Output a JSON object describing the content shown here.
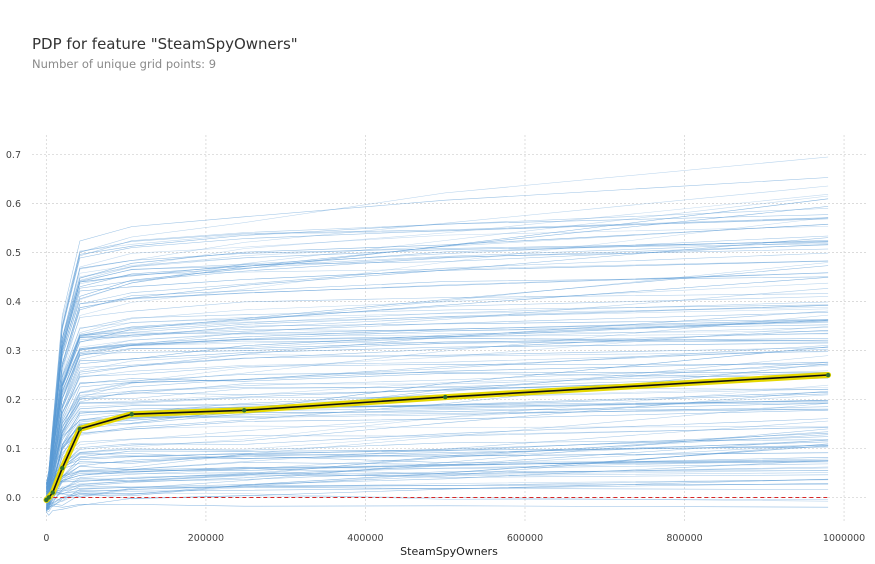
{
  "chart_data": {
    "type": "line",
    "title": "PDP for feature \"SteamSpyOwners\"",
    "subtitle": "Number of unique grid points: 9",
    "xlabel": "SteamSpyOwners",
    "ylabel": "",
    "xlim": [
      -18000,
      1030000
    ],
    "ylim": [
      -0.05,
      0.74
    ],
    "x_ticks": [
      0,
      200000,
      400000,
      600000,
      800000,
      1000000
    ],
    "y_ticks": [
      0.0,
      0.1,
      0.2,
      0.3,
      0.4,
      0.5,
      0.6,
      0.7
    ],
    "x_tick_labels": [
      "0",
      "200000",
      "400000",
      "600000",
      "800000",
      "1000000"
    ],
    "y_tick_labels": [
      "0.0",
      "0.1",
      "0.2",
      "0.3",
      "0.4",
      "0.5",
      "0.6",
      "0.7"
    ],
    "grid": true,
    "grid_points": [
      0,
      3000,
      8000,
      20000,
      42000,
      107000,
      248000,
      500000,
      980000
    ],
    "pdp": [
      -0.005,
      0.0,
      0.01,
      0.06,
      0.14,
      0.17,
      0.178,
      0.205,
      0.25
    ],
    "reference_line_y": 0,
    "colors": {
      "ice": "#5b9bd5",
      "pdp": "#111111",
      "pdp_band": "#e6d800",
      "pdp_marker": "#2f6f2f",
      "reference": "#d62728",
      "grid": "#d6d6d6"
    }
  }
}
